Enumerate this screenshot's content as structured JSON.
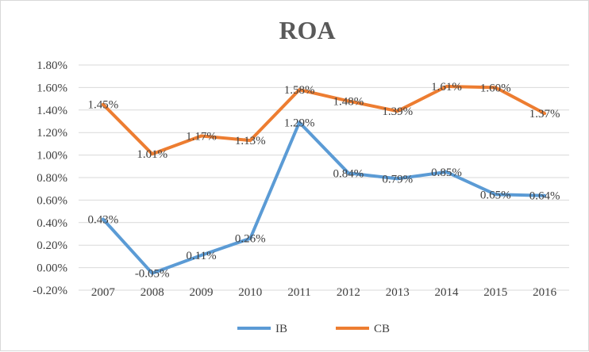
{
  "chart_data": {
    "type": "line",
    "title": "ROA",
    "xlabel": "",
    "ylabel": "",
    "categories": [
      "2007",
      "2008",
      "2009",
      "2010",
      "2011",
      "2012",
      "2013",
      "2014",
      "2015",
      "2016"
    ],
    "ylim": [
      -0.2,
      1.8
    ],
    "yticks": [
      -0.2,
      0.0,
      0.2,
      0.4,
      0.6,
      0.8,
      1.0,
      1.2,
      1.4,
      1.6,
      1.8
    ],
    "ytick_labels": [
      "-0.20%",
      "0.00%",
      "0.20%",
      "0.40%",
      "0.60%",
      "0.80%",
      "1.00%",
      "1.20%",
      "1.40%",
      "1.60%",
      "1.80%"
    ],
    "grid": true,
    "legend": "bottom",
    "series": [
      {
        "name": "IB",
        "color": "#5b9bd5",
        "values": [
          0.43,
          -0.05,
          0.11,
          0.26,
          1.29,
          0.84,
          0.79,
          0.85,
          0.65,
          0.64
        ],
        "labels": [
          "0.43%",
          "-0.05%",
          "0.11%",
          "0.26%",
          "1.29%",
          "0.84%",
          "0.79%",
          "0.85%",
          "0.65%",
          "0.64%"
        ]
      },
      {
        "name": "CB",
        "color": "#ed7d31",
        "values": [
          1.45,
          1.01,
          1.17,
          1.13,
          1.58,
          1.48,
          1.39,
          1.61,
          1.6,
          1.37
        ],
        "labels": [
          "1.45%",
          "1.01%",
          "1.17%",
          "1.13%",
          "1.58%",
          "1.48%",
          "1.39%",
          "1.61%",
          "1.60%",
          "1.37%"
        ]
      }
    ]
  }
}
